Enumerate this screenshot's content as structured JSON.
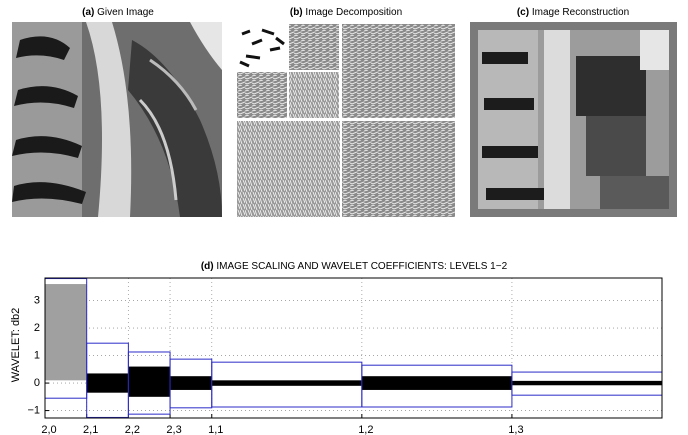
{
  "figure_panels": [
    {
      "label": "(a)",
      "title": "Given Image"
    },
    {
      "label": "(b)",
      "title": "Image Decomposition"
    },
    {
      "label": "(c)",
      "title": "Image Reconstruction"
    }
  ],
  "chart_data": {
    "type": "coefficient-blocks",
    "label": "(d)",
    "title": "IMAGE SCALING AND WAVELET COEFFICIENTS: LEVELS 1−2",
    "y_label": "WAVELET: db2",
    "xlim": [
      0,
      1480
    ],
    "ylim": [
      -1.27,
      3.82
    ],
    "yticks": [
      {
        "value": -1,
        "label": "−1"
      },
      0,
      1,
      2,
      3
    ],
    "xticks": [
      {
        "value": 0,
        "label": "2,0"
      },
      {
        "value": 100,
        "label": "2,1"
      },
      {
        "value": 200,
        "label": "2,2"
      },
      {
        "value": 300,
        "label": "2,3"
      },
      {
        "value": 400,
        "label": "1,1"
      },
      {
        "value": 760,
        "label": "1,2"
      },
      {
        "value": 1120,
        "label": "1,3"
      }
    ],
    "grid": true,
    "box_color": "#2b2bc8",
    "blocks": [
      {
        "start": 0,
        "end": 100,
        "min": -0.55,
        "max": 3.8,
        "band": [
          0.1,
          3.6
        ],
        "color": "#a0a0a0"
      },
      {
        "start": 100,
        "end": 200,
        "min": -1.25,
        "max": 1.45,
        "band": [
          -0.35,
          0.35
        ],
        "color": "#000000"
      },
      {
        "start": 200,
        "end": 300,
        "min": -1.13,
        "max": 1.13,
        "band": [
          -0.5,
          0.6
        ],
        "color": "#000000"
      },
      {
        "start": 300,
        "end": 400,
        "min": -0.9,
        "max": 0.87,
        "band": [
          -0.25,
          0.25
        ],
        "color": "#000000"
      },
      {
        "start": 400,
        "end": 760,
        "min": -0.87,
        "max": 0.76,
        "band": [
          -0.1,
          0.1
        ],
        "color": "#000000"
      },
      {
        "start": 760,
        "end": 1120,
        "min": -0.87,
        "max": 0.65,
        "band": [
          -0.25,
          0.25
        ],
        "color": "#000000"
      },
      {
        "start": 1120,
        "end": 1480,
        "min": -0.44,
        "max": 0.4,
        "band": [
          -0.08,
          0.08
        ],
        "color": "#000000"
      }
    ]
  }
}
